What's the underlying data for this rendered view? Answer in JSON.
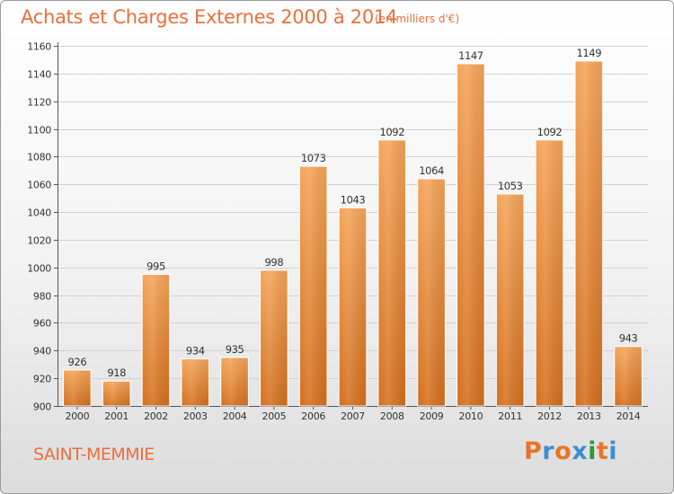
{
  "header": {
    "title": "Achats et Charges Externes 2000 à 2014",
    "unit": "(en milliers d'€)"
  },
  "footer": {
    "commune": "SAINT-MEMMIE",
    "logo_text": "Proxiti"
  },
  "colors": {
    "title": "#e8703a",
    "bar_top": "#f5a55a",
    "bar_bottom": "#d4701f",
    "logo_letters": [
      "#e8742a",
      "#3b8fd4",
      "#e8742a",
      "#3b8fd4",
      "#2f9a36",
      "#e8742a",
      "#3b8fd4"
    ]
  },
  "chart_data": {
    "type": "bar",
    "categories": [
      "2000",
      "2001",
      "2002",
      "2003",
      "2004",
      "2005",
      "2006",
      "2007",
      "2008",
      "2009",
      "2010",
      "2011",
      "2012",
      "2013",
      "2014"
    ],
    "values": [
      926,
      918,
      995,
      934,
      935,
      998,
      1073,
      1043,
      1092,
      1064,
      1147,
      1053,
      1092,
      1149,
      943
    ],
    "title": "Achats et Charges Externes 2000 à 2014",
    "xlabel": "",
    "ylabel": "",
    "ylim": [
      900,
      1160
    ],
    "yticks": [
      900,
      920,
      940,
      960,
      980,
      1000,
      1020,
      1040,
      1060,
      1080,
      1100,
      1120,
      1140,
      1160
    ],
    "grid": true,
    "legend": "none"
  }
}
